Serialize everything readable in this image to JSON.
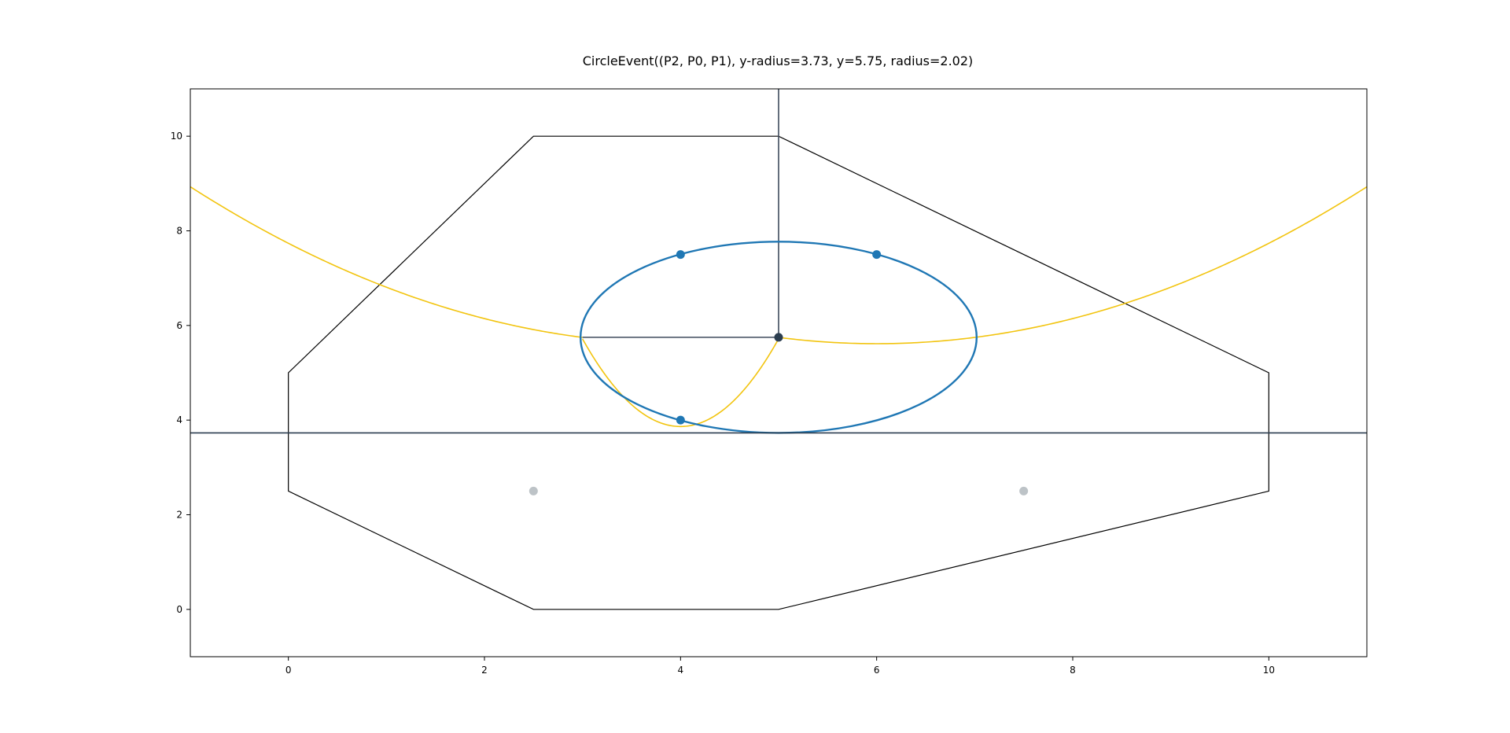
{
  "chart_data": {
    "type": "scatter",
    "title": "CircleEvent((P2, P0, P1), y-radius=3.73, y=5.75, radius=2.02)",
    "xlabel": "",
    "ylabel": "",
    "xlim": [
      -1,
      11
    ],
    "ylim": [
      -1,
      11
    ],
    "x_ticks": [
      0,
      2,
      4,
      6,
      8,
      10
    ],
    "y_ticks": [
      0,
      2,
      4,
      6,
      8,
      10
    ],
    "grid": false,
    "colors": {
      "boundary": "#000000",
      "circle": "#1f77b4",
      "parabola": "#f2c40f",
      "edges": "#3e4a5c",
      "sweep_line": "#2c3e50",
      "inactive_sites": "#bdc3c7",
      "circle_center": "#2c3e50"
    },
    "boundary_polygon": [
      [
        2.5,
        10
      ],
      [
        5,
        10
      ],
      [
        10,
        5
      ],
      [
        10,
        2.5
      ],
      [
        5,
        0
      ],
      [
        2.5,
        0
      ],
      [
        0,
        2.5
      ],
      [
        0,
        5
      ]
    ],
    "circle_event_sites": [
      [
        4,
        7.5
      ],
      [
        6,
        7.5
      ],
      [
        4,
        4
      ]
    ],
    "inactive_sites": [
      [
        2.5,
        2.5
      ],
      [
        7.5,
        2.5
      ]
    ],
    "circle_center": [
      5,
      5.75
    ],
    "circle_radius": 2.02,
    "sweep_line_y": 3.73,
    "beachline_arcs": [
      {
        "focus": [
          4,
          7.5
        ],
        "x_range": [
          -1,
          3.0
        ]
      },
      {
        "focus": [
          4,
          4.0
        ],
        "x_range": [
          3.0,
          5.0
        ]
      },
      {
        "focus": [
          6,
          7.5
        ],
        "x_range": [
          5.0,
          11
        ]
      }
    ],
    "voronoi_edges": [
      [
        [
          5,
          5.75
        ],
        [
          5,
          11
        ]
      ],
      [
        [
          5,
          5.75
        ],
        [
          3.0,
          5.75
        ]
      ]
    ]
  }
}
